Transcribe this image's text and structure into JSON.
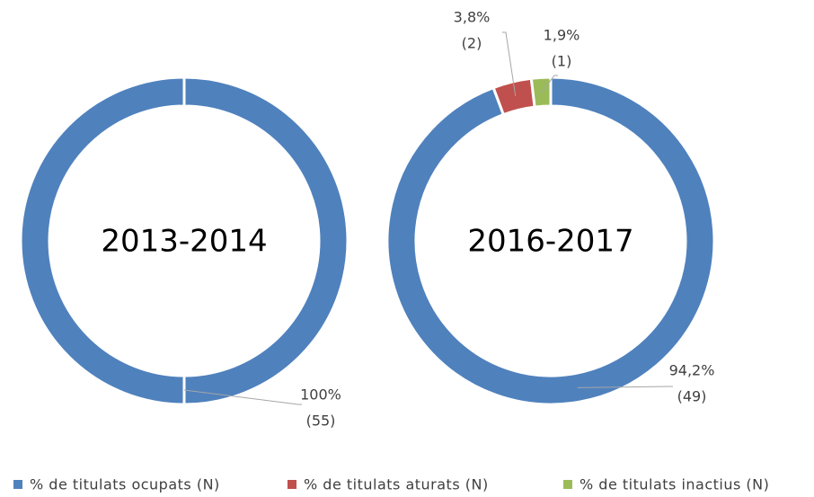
{
  "chart_data": {
    "type": "donut",
    "categories": [
      "% de titulats ocupats (N)",
      "% de titulats aturats (N)",
      "% de titulats inactius (N)"
    ],
    "colors": [
      "#4f81bd",
      "#c0504d",
      "#9bbb59"
    ],
    "series": [
      {
        "name": "2013-2014",
        "values": [
          100,
          0,
          0
        ],
        "value_labels": [
          "100%",
          null,
          null
        ],
        "count_labels": [
          "(55)",
          null,
          null
        ]
      },
      {
        "name": "2016-2017",
        "values": [
          94.2,
          3.8,
          1.9
        ],
        "value_labels": [
          "94,2%",
          "3,8%",
          "1,9%"
        ],
        "count_labels": [
          "(49)",
          "(2)",
          "(1)"
        ]
      }
    ]
  }
}
